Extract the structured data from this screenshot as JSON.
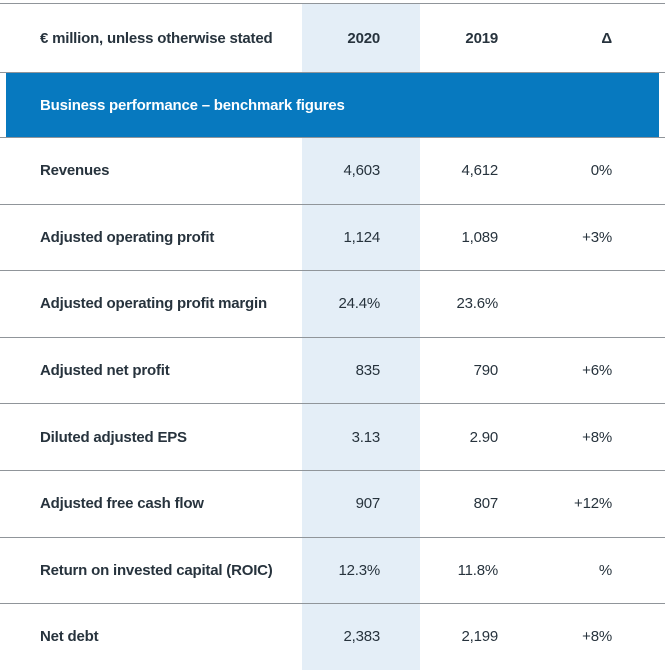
{
  "table": {
    "header": {
      "label": "€ million, unless otherwise stated",
      "col_2020": "2020",
      "col_2019": "2019",
      "col_delta": "Δ"
    },
    "section_title": "Business performance – benchmark figures",
    "rows": [
      {
        "label": "Revenues",
        "v2020": "4,603",
        "v2019": "4,612",
        "delta": "0%"
      },
      {
        "label": "Adjusted operating profit",
        "v2020": "1,124",
        "v2019": "1,089",
        "delta": "+3%"
      },
      {
        "label": "Adjusted operating profit margin",
        "v2020": "24.4%",
        "v2019": "23.6%",
        "delta": ""
      },
      {
        "label": "Adjusted net profit",
        "v2020": "835",
        "v2019": "790",
        "delta": "+6%"
      },
      {
        "label": "Diluted adjusted EPS",
        "v2020": "3.13",
        "v2019": "2.90",
        "delta": "+8%"
      },
      {
        "label": "Adjusted free cash flow",
        "v2020": "907",
        "v2019": "807",
        "delta": "+12%"
      },
      {
        "label": "Return on invested capital (ROIC)",
        "v2020": "12.3%",
        "v2019": "11.8%",
        "delta": "%"
      },
      {
        "label": "Net debt",
        "v2020": "2,383",
        "v2019": "2,199",
        "delta": "+8%"
      }
    ]
  },
  "colors": {
    "banner_blue": "#0779bf",
    "highlight_column": "#e4eef7",
    "separator_line": "#90959a",
    "text": "#27333d"
  },
  "chart_data": {
    "type": "table",
    "title": "Business performance – benchmark figures",
    "unit_note": "€ million, unless otherwise stated",
    "columns": [
      "2020",
      "2019",
      "Δ"
    ],
    "rows": [
      {
        "metric": "Revenues",
        "2020": 4603,
        "2019": 4612,
        "delta": "0%"
      },
      {
        "metric": "Adjusted operating profit",
        "2020": 1124,
        "2019": 1089,
        "delta": "+3%"
      },
      {
        "metric": "Adjusted operating profit margin",
        "2020": "24.4%",
        "2019": "23.6%",
        "delta": ""
      },
      {
        "metric": "Adjusted net profit",
        "2020": 835,
        "2019": 790,
        "delta": "+6%"
      },
      {
        "metric": "Diluted adjusted EPS",
        "2020": 3.13,
        "2019": 2.9,
        "delta": "+8%"
      },
      {
        "metric": "Adjusted free cash flow",
        "2020": 907,
        "2019": 807,
        "delta": "+12%"
      },
      {
        "metric": "Return on invested capital (ROIC)",
        "2020": "12.3%",
        "2019": "11.8%",
        "delta": "%"
      },
      {
        "metric": "Net debt",
        "2020": 2383,
        "2019": 2199,
        "delta": "+8%"
      }
    ]
  }
}
